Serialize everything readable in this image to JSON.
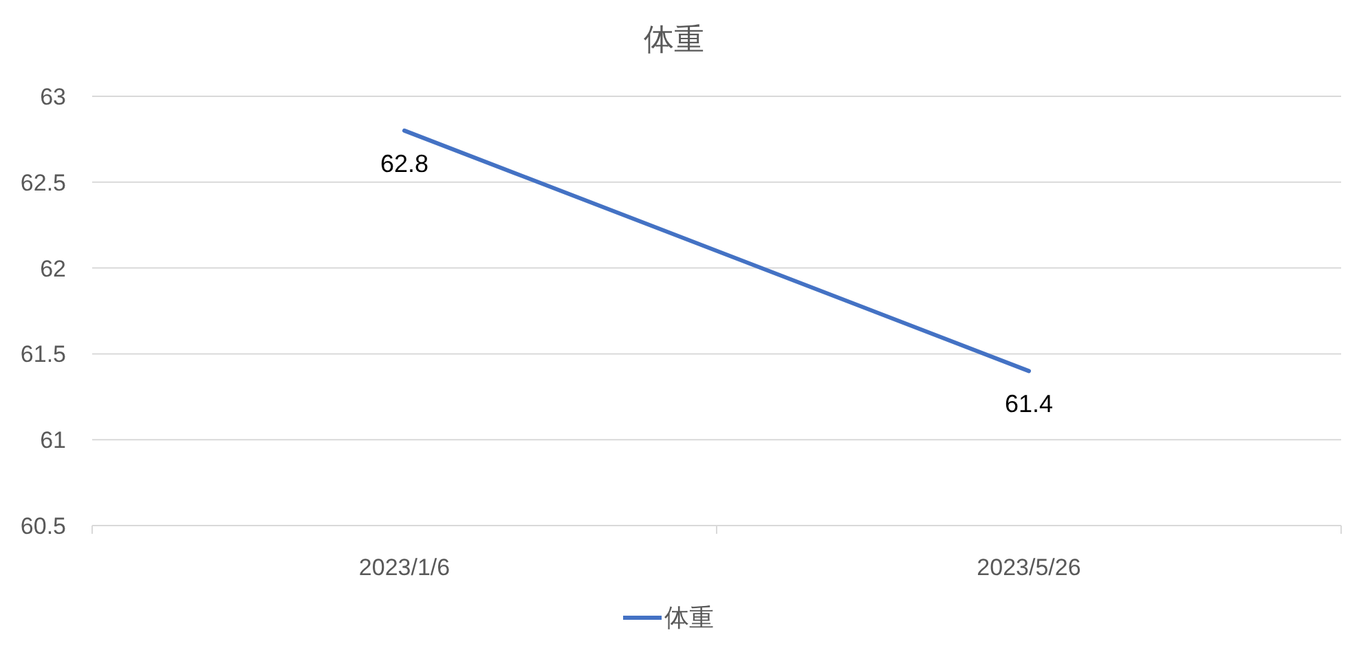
{
  "chart_data": {
    "type": "line",
    "title": "体重",
    "categories": [
      "2023/1/6",
      "2023/5/26"
    ],
    "series": [
      {
        "name": "体重",
        "color": "#4472c4",
        "values": [
          62.8,
          61.4
        ]
      }
    ],
    "ylim": [
      60.5,
      63
    ],
    "yticks": [
      60.5,
      61,
      61.5,
      62,
      62.5,
      63
    ],
    "grid": "y",
    "legend": "bottom",
    "data_labels": true,
    "marker": "none",
    "line_style": "solid"
  }
}
